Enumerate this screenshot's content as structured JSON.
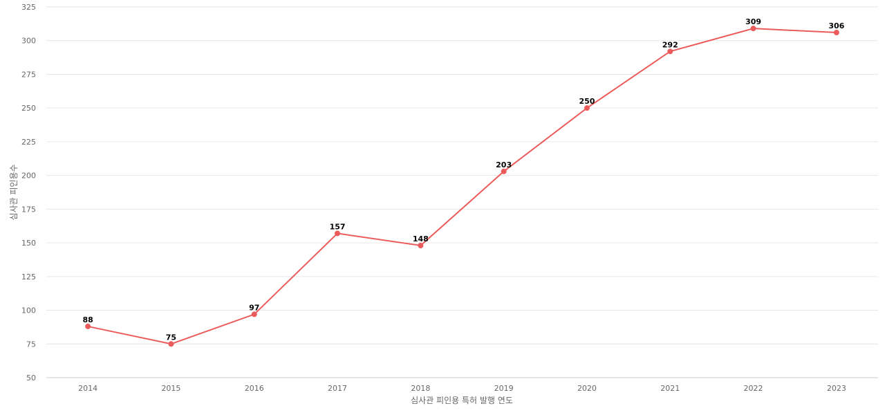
{
  "chart_data": {
    "type": "line",
    "xlabel": "심사관 피인용 특허 발행 연도",
    "ylabel": "심사관 피인용수",
    "ylim": [
      50,
      325
    ],
    "yticks": [
      50,
      75,
      100,
      125,
      150,
      175,
      200,
      225,
      250,
      275,
      300,
      325
    ],
    "grid": true,
    "categories": [
      "2014",
      "2015",
      "2016",
      "2017",
      "2018",
      "2019",
      "2020",
      "2021",
      "2022",
      "2023"
    ],
    "series": [
      {
        "values": [
          88,
          75,
          97,
          157,
          148,
          203,
          250,
          292,
          309,
          306
        ],
        "color": "#eb5b5b"
      }
    ]
  }
}
